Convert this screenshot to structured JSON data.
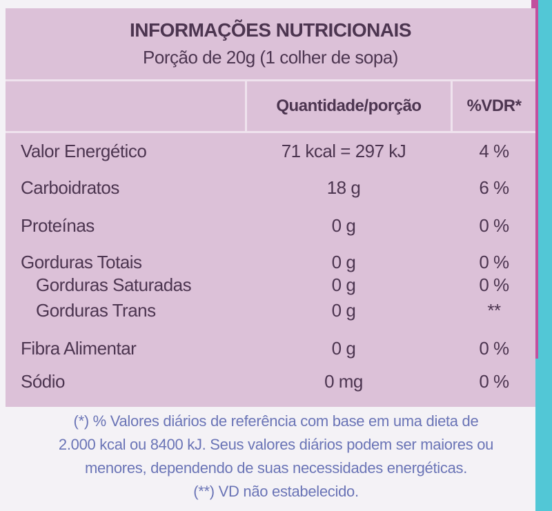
{
  "header": {
    "title": "INFORMAÇÕES NUTRICIONAIS",
    "subtitle": "Porção de 20g (1 colher de sopa)"
  },
  "table": {
    "columns": [
      "Quantidade/porção",
      "%VDR*"
    ],
    "rows": [
      [
        "Valor Energético",
        "71 kcal = 297 kJ",
        "4 %"
      ],
      [
        "Carboidratos",
        "18 g",
        "6 %"
      ],
      [
        "Proteínas",
        "0 g",
        "0 %"
      ],
      [
        "Gorduras Totais",
        "0 g",
        "0 %"
      ],
      [
        "Gorduras Saturadas",
        "0 g",
        "0 %"
      ],
      [
        "Gorduras Trans",
        "0 g",
        "**"
      ],
      [
        "Fibra Alimentar",
        "0 g",
        "0 %"
      ],
      [
        "Sódio",
        "0 mg",
        "0 %"
      ]
    ]
  },
  "footnote": [
    "(*) % Valores diários de referência com base em uma dieta de",
    "2.000 kcal ou 8400 kJ. Seus valores diários podem ser maiores ou",
    "menores, dependendo de suas necessidades energéticas.",
    "(**) VD não estabelecido."
  ]
}
